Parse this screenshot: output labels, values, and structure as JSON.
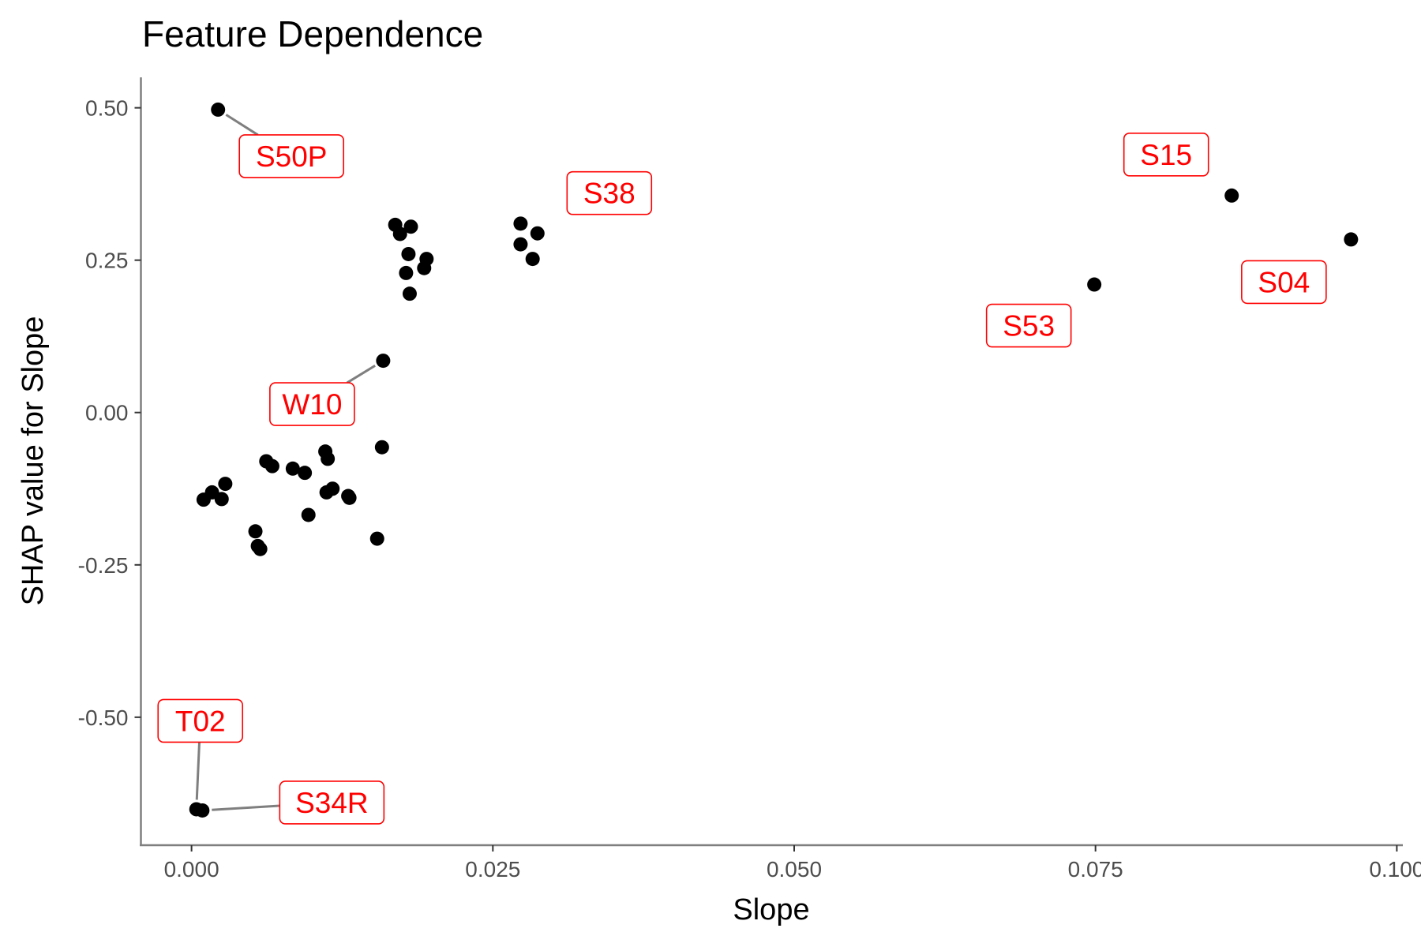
{
  "chart_data": {
    "type": "scatter",
    "title": "Feature Dependence",
    "xlabel": "Slope",
    "ylabel": "SHAP value for Slope",
    "xlim": [
      -0.0042,
      0.1005
    ],
    "ylim": [
      -0.71,
      0.55
    ],
    "x_ticks": [
      0.0,
      0.025,
      0.05,
      0.075,
      0.1
    ],
    "x_tick_labels": [
      "0.000",
      "0.025",
      "0.050",
      "0.075",
      "0.100"
    ],
    "y_ticks": [
      0.5,
      0.25,
      0.0,
      -0.25,
      -0.5
    ],
    "y_tick_labels": [
      "0.50",
      "0.25",
      "0.00",
      "-0.25",
      "-0.50"
    ],
    "grid": false,
    "point_color": "#000000",
    "label_color": "#ff0000",
    "points": [
      {
        "x": 0.0022,
        "y": 0.497
      },
      {
        "x": 0.0169,
        "y": 0.308
      },
      {
        "x": 0.0182,
        "y": 0.305
      },
      {
        "x": 0.0173,
        "y": 0.293
      },
      {
        "x": 0.018,
        "y": 0.26
      },
      {
        "x": 0.0195,
        "y": 0.252
      },
      {
        "x": 0.0193,
        "y": 0.237
      },
      {
        "x": 0.0178,
        "y": 0.229
      },
      {
        "x": 0.0181,
        "y": 0.195
      },
      {
        "x": 0.0273,
        "y": 0.31
      },
      {
        "x": 0.0287,
        "y": 0.294
      },
      {
        "x": 0.0273,
        "y": 0.276
      },
      {
        "x": 0.0283,
        "y": 0.252
      },
      {
        "x": 0.0159,
        "y": 0.085
      },
      {
        "x": 0.0158,
        "y": -0.057
      },
      {
        "x": 0.0111,
        "y": -0.064
      },
      {
        "x": 0.0113,
        "y": -0.076
      },
      {
        "x": 0.0062,
        "y": -0.08
      },
      {
        "x": 0.0067,
        "y": -0.088
      },
      {
        "x": 0.0084,
        "y": -0.092
      },
      {
        "x": 0.0094,
        "y": -0.099
      },
      {
        "x": 0.0028,
        "y": -0.117
      },
      {
        "x": 0.0117,
        "y": -0.125
      },
      {
        "x": 0.0112,
        "y": -0.131
      },
      {
        "x": 0.0017,
        "y": -0.131
      },
      {
        "x": 0.013,
        "y": -0.137
      },
      {
        "x": 0.0131,
        "y": -0.14
      },
      {
        "x": 0.001,
        "y": -0.143
      },
      {
        "x": 0.0025,
        "y": -0.142
      },
      {
        "x": 0.0097,
        "y": -0.168
      },
      {
        "x": 0.0053,
        "y": -0.195
      },
      {
        "x": 0.0055,
        "y": -0.219
      },
      {
        "x": 0.0057,
        "y": -0.224
      },
      {
        "x": 0.0154,
        "y": -0.207
      },
      {
        "x": 0.0004,
        "y": -0.651
      },
      {
        "x": 0.0009,
        "y": -0.653
      },
      {
        "x": 0.0749,
        "y": 0.21
      },
      {
        "x": 0.0863,
        "y": 0.356
      },
      {
        "x": 0.0962,
        "y": 0.284
      }
    ],
    "annotations": [
      {
        "label": "S50P",
        "x": 0.0022,
        "y": 0.497
      },
      {
        "label": "S38",
        "x": 0.0287,
        "y": 0.294
      },
      {
        "label": "W10",
        "x": 0.0159,
        "y": 0.085
      },
      {
        "label": "T02",
        "x": 0.0004,
        "y": -0.651
      },
      {
        "label": "S34R",
        "x": 0.0009,
        "y": -0.653
      },
      {
        "label": "S53",
        "x": 0.0749,
        "y": 0.21
      },
      {
        "label": "S15",
        "x": 0.0863,
        "y": 0.356
      },
      {
        "label": "S04",
        "x": 0.0962,
        "y": 0.284
      }
    ]
  }
}
